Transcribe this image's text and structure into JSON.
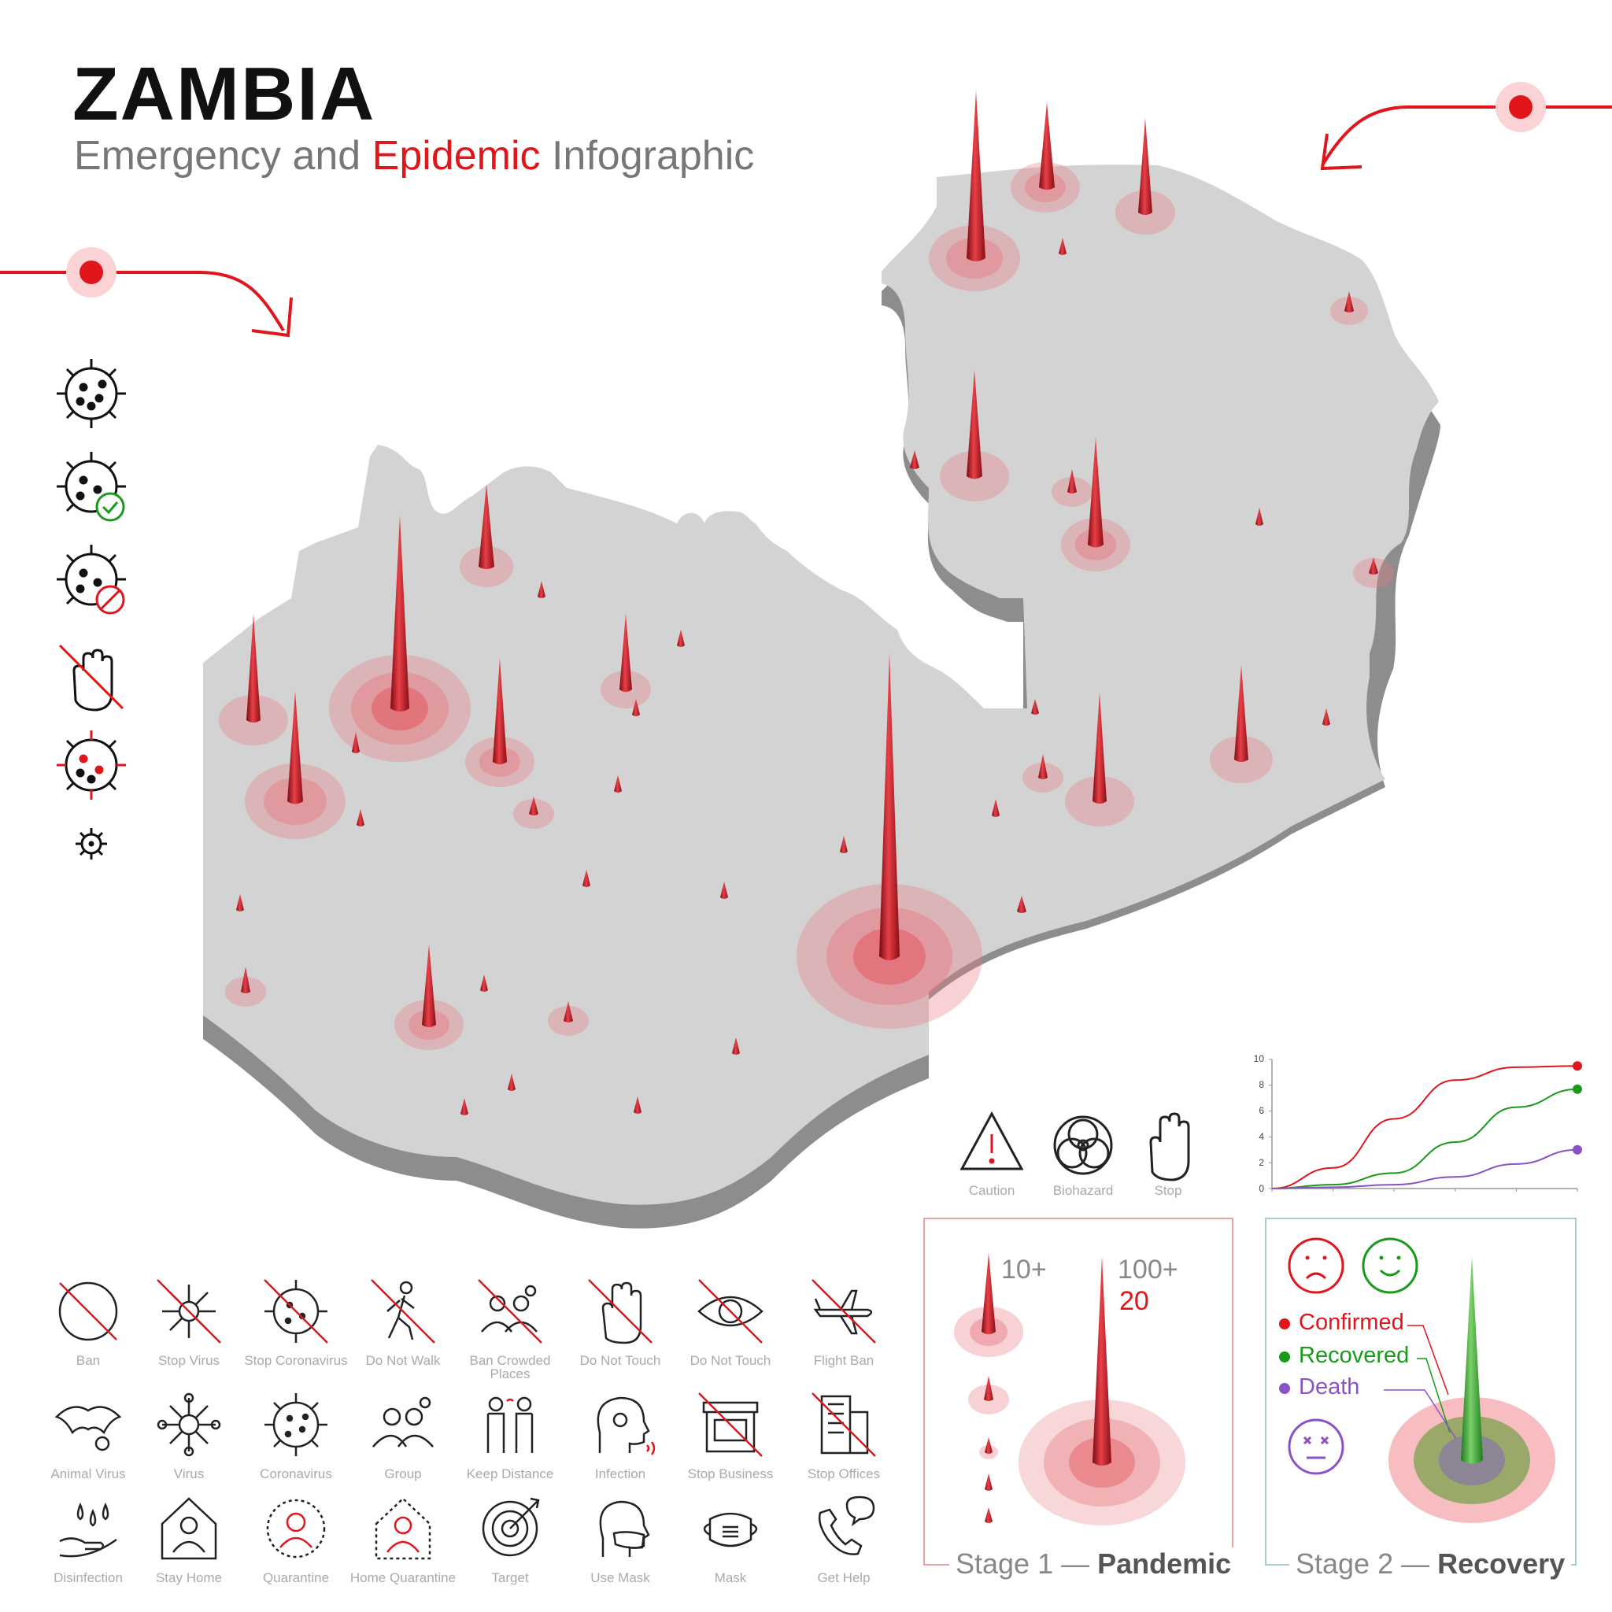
{
  "header": {
    "title": "ZAMBIA",
    "subtitle_pre": "Emergency and ",
    "subtitle_accent": "Epidemic",
    "subtitle_post": " Infographic"
  },
  "colors": {
    "accent": "#e0161b",
    "map": "#d3d3d3",
    "map_edge": "#8d8d8d",
    "confirmed": "#e0161b",
    "recovered": "#1a9a1a",
    "death": "#8b52c7"
  },
  "side_icons": [
    "virus-icon",
    "virus-check-icon",
    "virus-ban-icon",
    "stop-hand-icon",
    "virus-red-icon",
    "small-virus-icon"
  ],
  "hazard_icons": [
    {
      "icon": "caution-icon",
      "label": "Caution"
    },
    {
      "icon": "biohazard-icon",
      "label": "Biohazard"
    },
    {
      "icon": "stop-hand-icon",
      "label": "Stop"
    }
  ],
  "icon_grid": [
    {
      "icon": "ban-icon",
      "label": "Ban"
    },
    {
      "icon": "stop-virus-icon",
      "label": "Stop Virus"
    },
    {
      "icon": "stop-coronavirus-icon",
      "label": "Stop Coronavirus"
    },
    {
      "icon": "do-not-walk-icon",
      "label": "Do Not Walk"
    },
    {
      "icon": "ban-crowded-places-icon",
      "label": "Ban Crowded Places"
    },
    {
      "icon": "do-not-touch-icon",
      "label": "Do Not Touch"
    },
    {
      "icon": "do-not-touch-eye-icon",
      "label": "Do Not Touch"
    },
    {
      "icon": "flight-ban-icon",
      "label": "Flight Ban"
    },
    {
      "icon": "animal-virus-icon",
      "label": "Animal Virus"
    },
    {
      "icon": "virus-icon",
      "label": "Virus"
    },
    {
      "icon": "coronavirus-icon",
      "label": "Coronavirus"
    },
    {
      "icon": "group-icon",
      "label": "Group"
    },
    {
      "icon": "keep-distance-icon",
      "label": "Keep Distance"
    },
    {
      "icon": "infection-icon",
      "label": "Infection"
    },
    {
      "icon": "stop-business-icon",
      "label": "Stop Business"
    },
    {
      "icon": "stop-offices-icon",
      "label": "Stop Offices"
    },
    {
      "icon": "disinfection-icon",
      "label": "Disinfection"
    },
    {
      "icon": "stay-home-icon",
      "label": "Stay Home"
    },
    {
      "icon": "quarantine-icon",
      "label": "Quarantine"
    },
    {
      "icon": "home-quarantine-icon",
      "label": "Home Quarantine"
    },
    {
      "icon": "target-icon",
      "label": "Target"
    },
    {
      "icon": "use-mask-icon",
      "label": "Use Mask"
    },
    {
      "icon": "mask-icon",
      "label": "Mask"
    },
    {
      "icon": "get-help-icon",
      "label": "Get Help"
    }
  ],
  "stage1": {
    "caption_pre": "Stage 1 — ",
    "caption_bold": "Pandemic",
    "label_a": "10+",
    "label_b": "100+",
    "label_c": "20"
  },
  "stage2": {
    "caption_pre": "Stage 2 — ",
    "caption_bold": "Recovery",
    "legend": [
      {
        "label": "Confirmed"
      },
      {
        "label": "Recovered"
      },
      {
        "label": "Death"
      }
    ]
  },
  "chart_data": {
    "type": "line",
    "title": "",
    "xlabel": "",
    "ylabel": "",
    "ylim": [
      0,
      10
    ],
    "yticks": [
      "0",
      "2",
      "4",
      "6",
      "8",
      "10"
    ],
    "x": [
      0,
      1,
      2,
      3,
      4,
      5
    ],
    "series": [
      {
        "name": "Confirmed",
        "color": "#e0161b",
        "values": [
          0,
          1.6,
          5.4,
          8.4,
          9.4,
          9.5
        ]
      },
      {
        "name": "Recovered",
        "color": "#1a9a1a",
        "values": [
          0,
          0.3,
          1.2,
          3.6,
          6.3,
          7.7
        ]
      },
      {
        "name": "Death",
        "color": "#8b52c7",
        "values": [
          0,
          0.1,
          0.3,
          0.9,
          1.9,
          3.0
        ]
      }
    ]
  }
}
